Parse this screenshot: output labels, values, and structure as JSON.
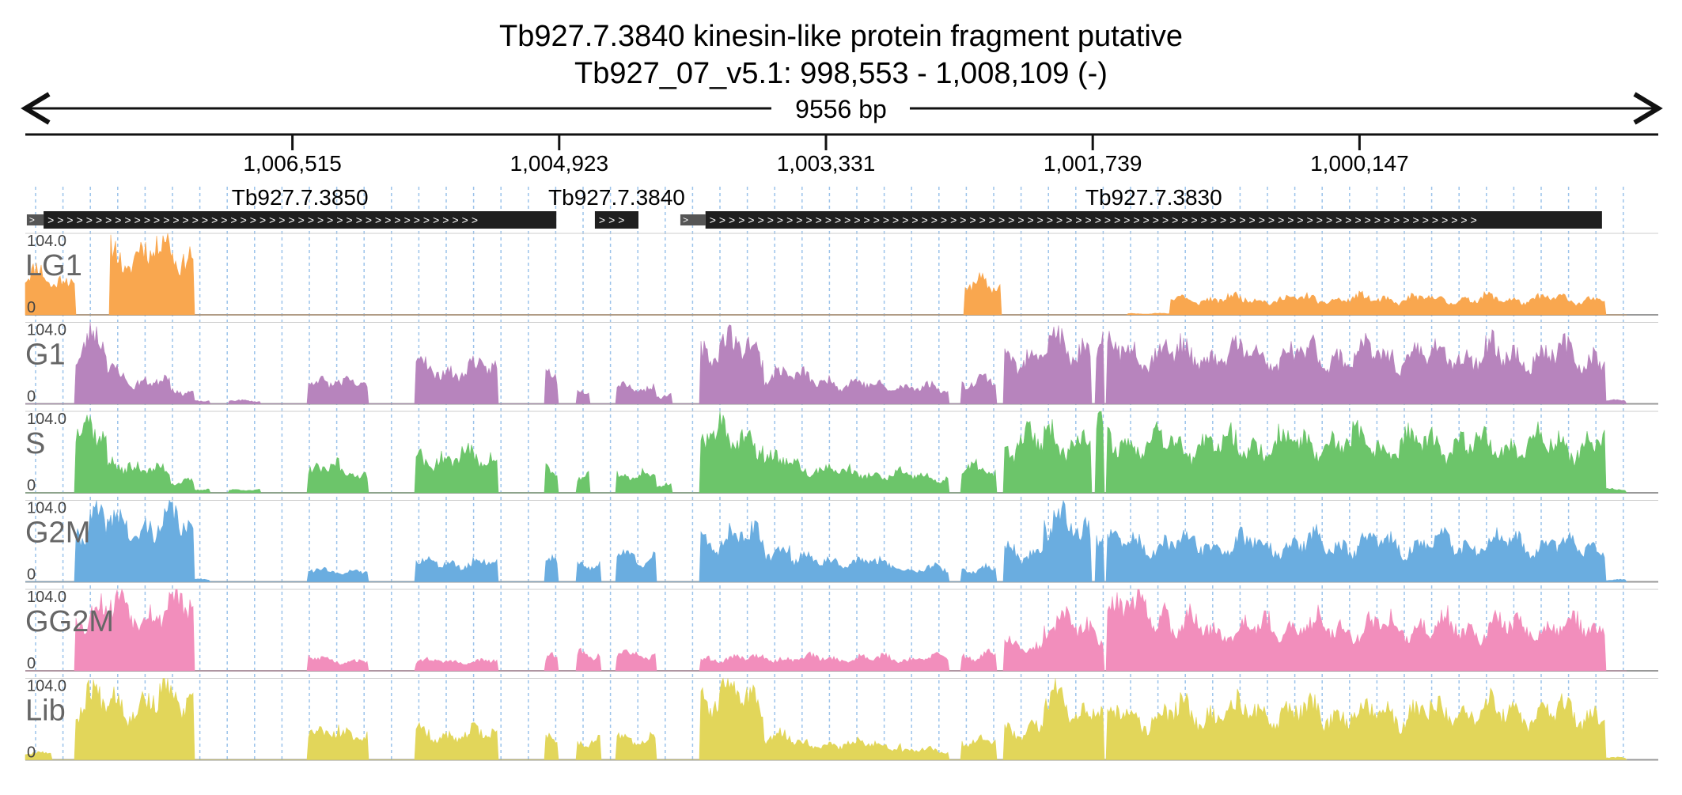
{
  "title": {
    "line1": "Tb927.7.3840  kinesin-like protein  fragment  putative",
    "line2": "Tb927_07_v5.1: 998,553 - 1,008,109 (-)"
  },
  "ruler": {
    "span_label": "9556 bp",
    "ticks": [
      {
        "pos": 1006515,
        "label": "1,006,515"
      },
      {
        "pos": 1004923,
        "label": "1,004,923"
      },
      {
        "pos": 1003331,
        "label": "1,003,331"
      },
      {
        "pos": 1001739,
        "label": "1,001,739"
      },
      {
        "pos": 1000147,
        "label": "1,000,147"
      }
    ]
  },
  "region": {
    "start": 998553,
    "end": 1008109,
    "strand": "-"
  },
  "genes": [
    {
      "name": "Tb927.7.3850",
      "label": "Tb927.7.3850",
      "start": 1004940,
      "end": 1008000
    },
    {
      "name": "Tb927.7.3840",
      "label": "Tb927.7.3840",
      "start": 1004450,
      "end": 1004710
    },
    {
      "name": "Tb927.7.3830",
      "label": "Tb927.7.3830",
      "start": 998700,
      "end": 1004050
    }
  ],
  "gene_fragments": [
    {
      "name": "utr-left-3850",
      "start": 1008000,
      "end": 1008100
    },
    {
      "name": "utr-left-3830",
      "start": 1004050,
      "end": 1004200
    }
  ],
  "tracks": [
    {
      "name": "LG1",
      "label": "LG1",
      "max_label": "104.0",
      "min_label": "0",
      "color": "#f9a74f",
      "seed": 11,
      "profile": "lg1"
    },
    {
      "name": "G1",
      "label": "G1",
      "max_label": "104.0",
      "min_label": "0",
      "color": "#b784bd",
      "seed": 23,
      "profile": "g1"
    },
    {
      "name": "S",
      "label": "S",
      "max_label": "104.0",
      "min_label": "0",
      "color": "#6cc56a",
      "seed": 37,
      "profile": "s"
    },
    {
      "name": "G2M",
      "label": "G2M",
      "max_label": "104.0",
      "min_label": "0",
      "color": "#6aade0",
      "seed": 41,
      "profile": "g2m"
    },
    {
      "name": "GG2M",
      "label": "GG2M",
      "max_label": "104.0",
      "min_label": "0",
      "color": "#f28ebc",
      "seed": 53,
      "profile": "gg2m"
    },
    {
      "name": "Lib",
      "label": "Lib",
      "max_label": "104.0",
      "min_label": "0",
      "color": "#e2d65a",
      "seed": 67,
      "profile": "lib"
    }
  ],
  "colors": {
    "gene_fill": "#1f1f1f",
    "gene_arrow": "#ffffff",
    "grid": "#9cc3ea",
    "clip": "#d04040",
    "baseline": "#999999",
    "track_label": "#666666"
  }
}
